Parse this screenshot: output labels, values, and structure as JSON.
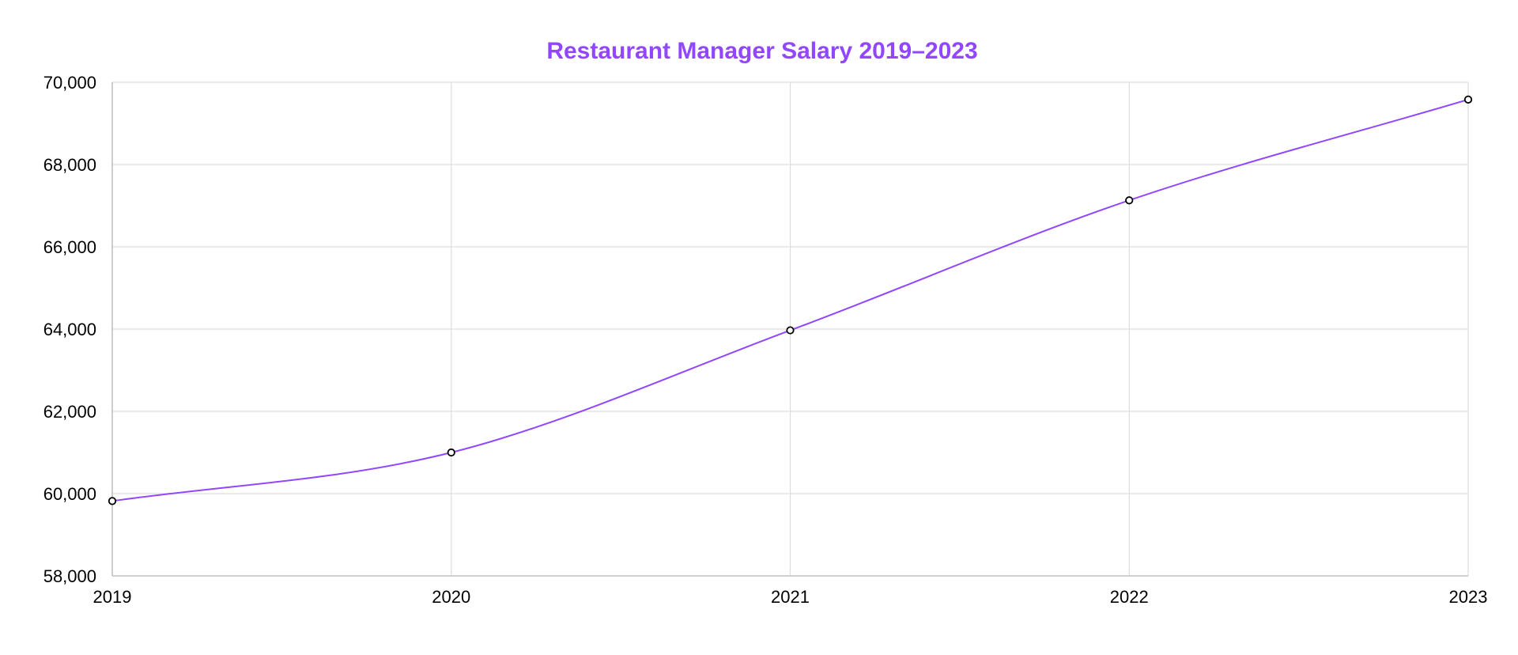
{
  "chart_data": {
    "type": "line",
    "title": "Restaurant Manager Salary 2019–2023",
    "xlabel": "",
    "ylabel": "",
    "x": [
      "2019",
      "2020",
      "2021",
      "2022",
      "2023"
    ],
    "series": [
      {
        "values": [
          59820,
          61000,
          63970,
          67130,
          69580
        ]
      }
    ],
    "ylim": [
      58000,
      70000
    ],
    "yticks": [
      58000,
      60000,
      62000,
      64000,
      66000,
      68000,
      70000
    ],
    "ytick_labels": [
      "58,000",
      "60,000",
      "62,000",
      "64,000",
      "66,000",
      "68,000",
      "70,000"
    ],
    "grid": true,
    "legend": "none",
    "colors": {
      "title": "#9146ff",
      "line": "#9146ff",
      "grid": "#dddddd",
      "axis": "#c8c8c8",
      "point_fill": "#ffffff",
      "point_stroke": "#000000"
    }
  }
}
